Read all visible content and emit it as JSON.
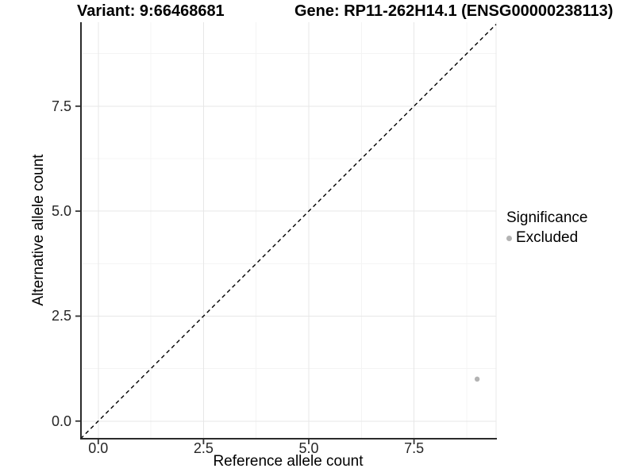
{
  "header": {
    "title_variant": "Variant: 9:66468681",
    "title_gene": "Gene: RP11-262H14.1 (ENSG00000238113)"
  },
  "legend": {
    "title": "Significance",
    "items": [
      {
        "label": "Excluded",
        "marker_color": "#b3b3b3"
      }
    ]
  },
  "chart_data": {
    "type": "scatter",
    "titles": [
      "Variant: 9:66468681",
      "Gene: RP11-262H14.1 (ENSG00000238113)"
    ],
    "xlabel": "Reference allele count",
    "ylabel": "Alternative allele count",
    "xlim": [
      -0.43,
      9.45
    ],
    "ylim": [
      -0.42,
      9.5
    ],
    "xticks": {
      "values": [
        0,
        2.5,
        5,
        7.5
      ],
      "labels": [
        "0.0",
        "2.5",
        "5.0",
        "7.5"
      ]
    },
    "yticks": {
      "values": [
        0,
        2.5,
        5,
        7.5
      ],
      "labels": [
        "0.0",
        "2.5",
        "5.0",
        "7.5"
      ]
    },
    "minor_xticks": [
      1.25,
      3.75,
      6.25,
      8.75
    ],
    "minor_yticks": [
      1.25,
      3.75,
      6.25,
      8.75
    ],
    "grid": "major+minor",
    "legend_position": "right",
    "legend_title": "Significance",
    "reference_line": {
      "type": "identity y=x",
      "style": "dashed",
      "color": "#000000"
    },
    "series": [
      {
        "name": "Excluded",
        "color": "#b3b3b3",
        "points": [
          {
            "x": 9,
            "y": 1
          }
        ]
      }
    ]
  },
  "colors": {
    "background": "#ffffff",
    "grid_major": "#e7e7e7",
    "grid_minor": "#f4f4f4",
    "panel_border": "#e9e9e9",
    "axis_line": "#2b2b2b",
    "tick_mark": "#333333",
    "tick_text": "#262626",
    "text": "#000000",
    "point": "#b3b3b3",
    "dashed_line": "#000000"
  }
}
